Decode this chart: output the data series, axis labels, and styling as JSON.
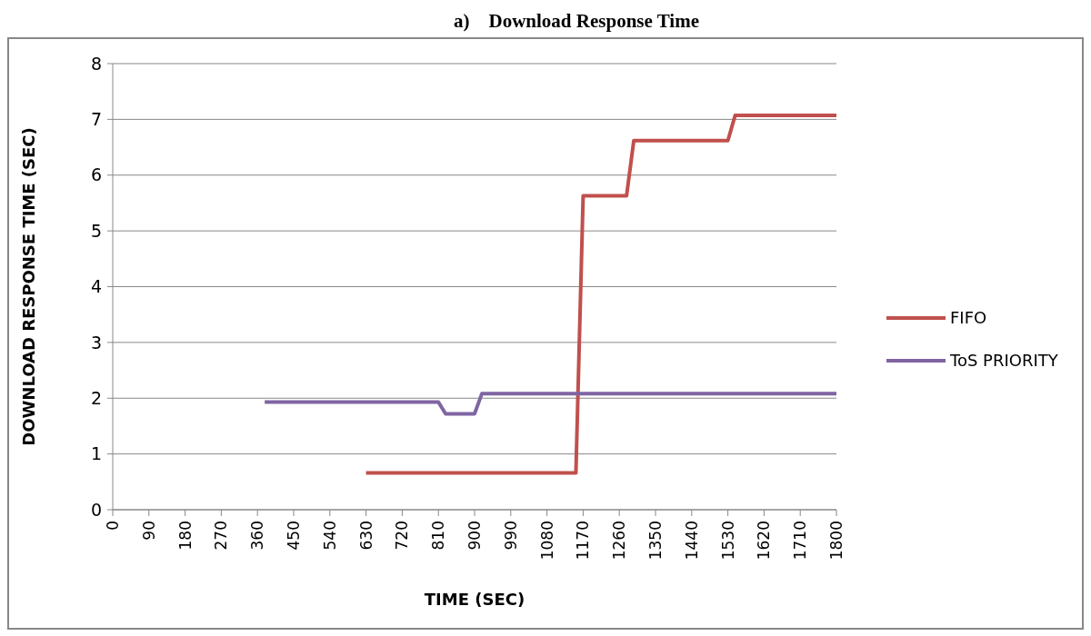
{
  "chart_data": {
    "type": "line",
    "title": "a)    Download Response Time",
    "xlabel": "TIME (SEC)",
    "ylabel": "DOWNLOAD RESPONSE TIME (SEC)",
    "xlim": [
      0,
      1800
    ],
    "xticks": [
      0,
      90,
      180,
      270,
      360,
      450,
      540,
      630,
      720,
      810,
      900,
      990,
      1080,
      1170,
      1260,
      1350,
      1440,
      1530,
      1620,
      1710,
      1800
    ],
    "ylim": [
      0,
      8
    ],
    "yticks": [
      0,
      1,
      2,
      3,
      4,
      5,
      6,
      7,
      8
    ],
    "grid": "y",
    "legend": "right",
    "marker": "none",
    "line_style": "solid",
    "series": [
      {
        "name": "FIFO",
        "color": "#c0504d",
        "x": [
          630,
          1152,
          1170,
          1278,
          1296,
          1530,
          1548,
          1800
        ],
        "values": [
          0.66,
          0.66,
          5.63,
          5.63,
          6.62,
          6.62,
          7.07,
          7.07
        ]
      },
      {
        "name": "ToS PRIORITY",
        "color": "#8064a2",
        "x": [
          378,
          810,
          828,
          900,
          918,
          1800
        ],
        "values": [
          1.93,
          1.93,
          1.72,
          1.72,
          2.08,
          2.08
        ]
      }
    ]
  }
}
